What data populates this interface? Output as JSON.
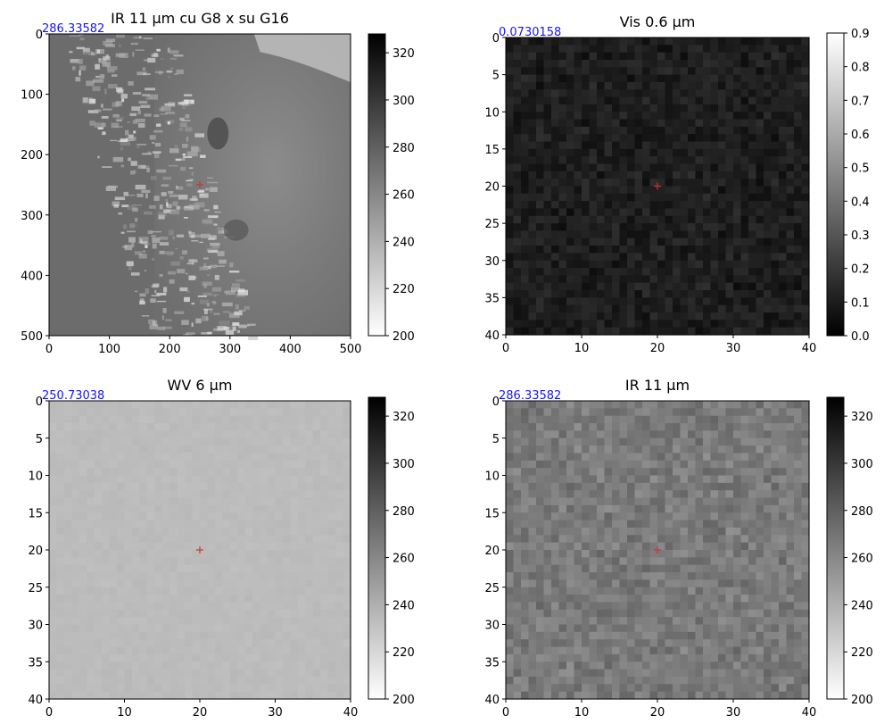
{
  "figure": {
    "marker_color": "#cc3333",
    "corner_value_color": "#1515ff"
  },
  "chart_data": [
    {
      "type": "heatmap",
      "title": "IR 11 µm cu G8 x su G16",
      "corner_value": "286.33582",
      "xlim": [
        0,
        500
      ],
      "ylim": [
        500,
        0
      ],
      "xticks": [
        "0",
        "100",
        "200",
        "300",
        "400",
        "500"
      ],
      "yticks": [
        "0",
        "100",
        "200",
        "300",
        "400",
        "500"
      ],
      "marker": {
        "x": 250,
        "y": 250
      },
      "colorbar": {
        "range": [
          200,
          328
        ],
        "ticks": [
          "200",
          "220",
          "240",
          "260",
          "280",
          "300",
          "320"
        ],
        "colormap": "gray_r"
      },
      "image": "wide-area infrared view"
    },
    {
      "type": "heatmap",
      "title": "Vis 0.6 µm",
      "corner_value": "0.0730158",
      "xlim": [
        0,
        40
      ],
      "ylim": [
        40,
        0
      ],
      "xticks": [
        "0",
        "10",
        "20",
        "30",
        "40"
      ],
      "yticks": [
        "0",
        "5",
        "10",
        "15",
        "20",
        "25",
        "30",
        "35",
        "40"
      ],
      "marker": {
        "x": 20,
        "y": 20
      },
      "colorbar": {
        "range": [
          0,
          0.9
        ],
        "ticks": [
          "0.0",
          "0.1",
          "0.2",
          "0.3",
          "0.4",
          "0.5",
          "0.6",
          "0.7",
          "0.8",
          "0.9"
        ],
        "colormap": "gray"
      },
      "image": "dark pixelated visible-band patch"
    },
    {
      "type": "heatmap",
      "title": "WV 6 µm",
      "corner_value": "250.73038",
      "xlim": [
        0,
        40
      ],
      "ylim": [
        40,
        0
      ],
      "xticks": [
        "0",
        "10",
        "20",
        "30",
        "40"
      ],
      "yticks": [
        "0",
        "5",
        "10",
        "15",
        "20",
        "25",
        "30",
        "35",
        "40"
      ],
      "marker": {
        "x": 20,
        "y": 20
      },
      "colorbar": {
        "range": [
          200,
          328
        ],
        "ticks": [
          "200",
          "220",
          "240",
          "260",
          "280",
          "300",
          "320"
        ],
        "colormap": "gray_r"
      },
      "image": "uniform light-gray water-vapour patch"
    },
    {
      "type": "heatmap",
      "title": "IR 11 µm",
      "corner_value": "286.33582",
      "xlim": [
        0,
        40
      ],
      "ylim": [
        40,
        0
      ],
      "xticks": [
        "0",
        "10",
        "20",
        "30",
        "40"
      ],
      "yticks": [
        "0",
        "5",
        "10",
        "15",
        "20",
        "25",
        "30",
        "35",
        "40"
      ],
      "marker": {
        "x": 20,
        "y": 20
      },
      "colorbar": {
        "range": [
          200,
          328
        ],
        "ticks": [
          "200",
          "220",
          "240",
          "260",
          "280",
          "300",
          "320"
        ],
        "colormap": "gray_r"
      },
      "image": "mid-gray pixelated infrared patch"
    }
  ]
}
